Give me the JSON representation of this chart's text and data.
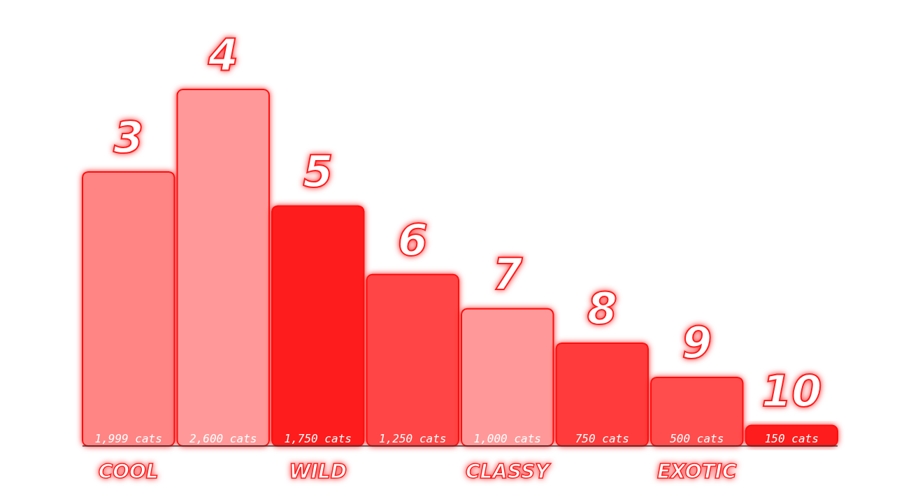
{
  "chart_data": {
    "type": "bar",
    "categories": [
      "3",
      "4",
      "5",
      "6",
      "7",
      "8",
      "9",
      "10"
    ],
    "values": [
      1999,
      2600,
      1750,
      1250,
      1000,
      750,
      500,
      150
    ],
    "value_labels": [
      "1,999 cats",
      "2,600 cats",
      "1,750 cats",
      "1,250 cats",
      "1,000 cats",
      "750 cats",
      "500 cats",
      "150 cats"
    ],
    "colors": [
      "#ff8585",
      "#ff9999",
      "#ff1a1a",
      "#ff4545",
      "#ff9999",
      "#ff3a3a",
      "#ff4d4d",
      "#ff1a1a"
    ],
    "annotations": [
      {
        "text": "COOL",
        "x": "3",
        "y": 0
      },
      {
        "text": "WILD",
        "x": "5",
        "y": 0
      },
      {
        "text": "CLASSY",
        "x": "7",
        "y": 0
      },
      {
        "text": "EXOTIC",
        "x": "9",
        "y": 0
      }
    ],
    "orientation": "vertical"
  }
}
